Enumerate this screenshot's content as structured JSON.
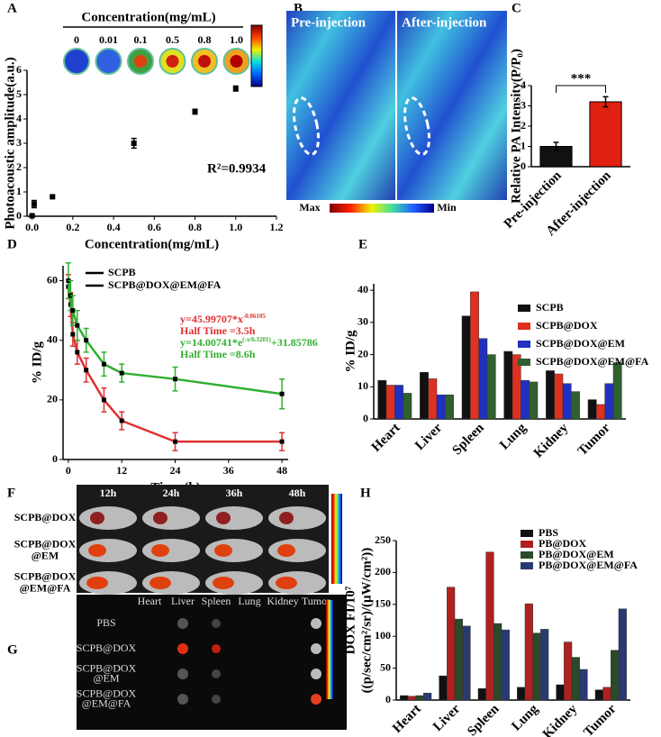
{
  "chart_data": [
    {
      "type": "scatter",
      "panel_label": "A",
      "xlabel": "Concentration(mg/mL)",
      "ylabel": "Photoacoustic amplitude(a.u.)",
      "x": [
        0,
        0.01,
        0.1,
        0.5,
        0.8,
        1.0
      ],
      "values": [
        0.02,
        0.5,
        0.8,
        3.0,
        4.3,
        5.25
      ],
      "errors": [
        0.05,
        0.15,
        0.05,
        0.2,
        0.1,
        0.1
      ],
      "color": "#000000",
      "xlim": [
        -0.025,
        1.2
      ],
      "xticks": [
        {
          "value": 0,
          "label": "0.0"
        },
        0.2,
        0.4,
        0.6,
        0.8,
        {
          "value": 1,
          "label": "1.0"
        },
        1.2
      ],
      "ylim": [
        0,
        6
      ],
      "yticks": [
        0,
        1,
        2,
        3,
        4,
        5,
        6
      ],
      "annotation": "R²=0.9934",
      "inset": {
        "title": "Concentration(mg/mL)",
        "labels": [
          "0",
          "0.01",
          "0.1",
          "0.5",
          "0.8",
          "1.0"
        ]
      }
    },
    {
      "type": "bar",
      "panel_label": "C",
      "ylabel": "Relative PA Intensity(P/P₀)",
      "categories": [
        "Pre-injection",
        "After-injection"
      ],
      "values": [
        1.0,
        3.2
      ],
      "errors": [
        0.2,
        0.25
      ],
      "colors": [
        "#111111",
        "#e02010"
      ],
      "ylim": [
        0,
        4
      ],
      "yticks": [
        0,
        1,
        2,
        3,
        4
      ],
      "annotation": "***"
    },
    {
      "type": "line",
      "panel_label": "D",
      "xlabel": "Time (h)",
      "ylabel": "% ID/g",
      "x": [
        0,
        0.5,
        1,
        2,
        4,
        8,
        12,
        24,
        48
      ],
      "series": [
        {
          "name": "SCPB",
          "color": "#e03030",
          "values": [
            58,
            52,
            42,
            36,
            30,
            20,
            13,
            6,
            6
          ],
          "errors": [
            4,
            4,
            4,
            4,
            4,
            4,
            3,
            3,
            3
          ]
        },
        {
          "name": "SCPB@DOX@EM@FA",
          "color": "#30b030",
          "values": [
            60,
            55,
            50,
            45,
            40,
            32,
            29,
            27,
            22
          ],
          "errors": [
            6,
            5,
            5,
            5,
            4,
            4,
            3,
            4,
            5
          ]
        }
      ],
      "xlim": [
        -1.2,
        49.4
      ],
      "xticks": [
        0,
        12,
        24,
        36,
        48
      ],
      "ylim": [
        0,
        65
      ],
      "yticks": [
        0,
        20,
        40,
        60
      ],
      "annotations": [
        {
          "text": "y=45.99707*x",
          "sup": "-0.06105",
          "color": "#e03030"
        },
        {
          "text": "Half Time =3.5h",
          "color": "#e03030"
        },
        {
          "text": "y=14.00741*e",
          "sup": "(-x/6.3201)",
          "tail": "+31.85786",
          "color": "#30b030"
        },
        {
          "text": "Half Time =8.6h",
          "color": "#30b030"
        }
      ]
    },
    {
      "type": "grouped-bar",
      "panel_label": "E",
      "ylabel": "% ID/g",
      "categories": [
        "Heart",
        "Liver",
        "Spleen",
        "Lung",
        "Kidney",
        "Tumor"
      ],
      "series": [
        {
          "name": "SCPB",
          "color": "#111111",
          "values": [
            12,
            14.5,
            32,
            21,
            15,
            6
          ]
        },
        {
          "name": "SCPB@DOX",
          "color": "#e03020",
          "values": [
            10.5,
            12.5,
            39.5,
            20,
            14,
            4.5
          ]
        },
        {
          "name": "SCPB@DOX@EM",
          "color": "#2030c0",
          "values": [
            10.5,
            7.5,
            25,
            12,
            11,
            11
          ]
        },
        {
          "name": "SCPB@DOX@EM@FA",
          "color": "#306030",
          "values": [
            8,
            7.5,
            20,
            11.5,
            8.5,
            17.5
          ]
        }
      ],
      "ylim": [
        0,
        42
      ],
      "yticks": [
        0,
        10,
        20,
        30,
        40
      ]
    },
    {
      "type": "grouped-bar",
      "panel_label": "H",
      "ylabel": [
        "DOX FI/10⁷",
        "((p/sec/cm²/sr)/(μW/cm²))"
      ],
      "categories": [
        "Heart",
        "Liver",
        "Spleen",
        "Lung",
        "Kidney",
        "Tumor"
      ],
      "series": [
        {
          "name": "PBS",
          "color": "#111111",
          "values": [
            7,
            38,
            18,
            20,
            24,
            16
          ]
        },
        {
          "name": "PB@DOX",
          "color": "#b02020",
          "values": [
            6,
            177,
            232,
            151,
            91,
            20
          ]
        },
        {
          "name": "PB@DOX@EM",
          "color": "#2a4a2a",
          "values": [
            7,
            127,
            120,
            105,
            67,
            78
          ]
        },
        {
          "name": "PB@DOX@EM@FA",
          "color": "#2a3a70",
          "values": [
            11,
            116,
            110,
            111,
            48,
            143
          ]
        }
      ],
      "ylim": [
        0,
        250
      ],
      "yticks": [
        0,
        50,
        100,
        150,
        200,
        250
      ]
    }
  ],
  "images": {
    "B": {
      "panel_label": "B",
      "labels": [
        "Pre-injection",
        "After-injection"
      ],
      "scale": [
        "Max",
        "Min"
      ]
    },
    "F": {
      "panel_label": "F",
      "columns": [
        "12h",
        "24h",
        "36h",
        "48h"
      ],
      "rows": [
        [
          "SCPB@DOX"
        ],
        [
          "SCPB@DOX",
          "@EM"
        ],
        [
          "SCPB@DOX",
          "@EM@FA"
        ]
      ]
    },
    "G": {
      "panel_label": "G",
      "columns": [
        "Heart",
        "Liver",
        "Spleen",
        "Lung",
        "Kidney",
        "Tumor"
      ],
      "rows": [
        [
          "PBS"
        ],
        [
          "SCPB@DOX"
        ],
        [
          "SCPB@DOX",
          "@EM"
        ],
        [
          "SCPB@DOX",
          "@EM@FA"
        ]
      ]
    }
  }
}
